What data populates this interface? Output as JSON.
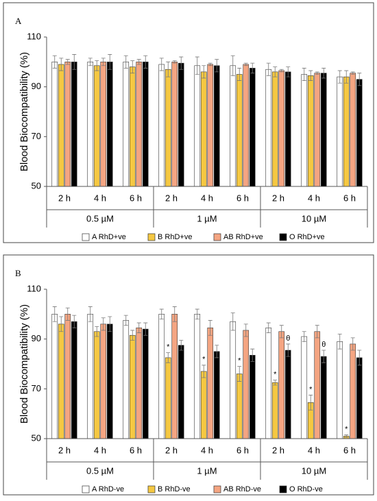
{
  "chart_data": [
    {
      "type": "bar",
      "panel_label": "A",
      "y_label": "Blood Biocompatibility (%)",
      "categories": [
        "2 h",
        "4 h",
        "6 h",
        "2 h",
        "4 h",
        "6 h",
        "2 h",
        "4 h",
        "6 h"
      ],
      "group_labels": [
        "0.5 µM",
        "1 µM",
        "10 µM"
      ],
      "ylim": [
        50,
        110
      ],
      "yticks": [
        50,
        70,
        90,
        110
      ],
      "legend": "bottom",
      "series": [
        {
          "name": "A RhD+ve",
          "color": "#ffffff",
          "values": [
            100,
            100,
            100,
            99,
            98.5,
            98.5,
            97,
            95,
            94
          ],
          "errors": [
            2.5,
            1.5,
            2.5,
            2.5,
            3.5,
            4,
            2.5,
            2.5,
            2.5
          ]
        },
        {
          "name": "B RhD+ve",
          "color": "#f5c842",
          "values": [
            99,
            98.5,
            98,
            97,
            96,
            95,
            96,
            94.5,
            94
          ],
          "errors": [
            2.5,
            2,
            2.5,
            3,
            2.5,
            2.5,
            2,
            2,
            2.5
          ]
        },
        {
          "name": "AB RhD+ve",
          "color": "#f4a582",
          "values": [
            100,
            100,
            100,
            100,
            99,
            99,
            96.5,
            95.5,
            95.5
          ],
          "errors": [
            1,
            1.5,
            1,
            0.5,
            0.5,
            0.5,
            0.5,
            0.5,
            0.5
          ]
        },
        {
          "name": "O RhD+ve",
          "color": "#000000",
          "values": [
            100,
            100,
            100,
            99.5,
            98.5,
            97.5,
            96,
            95.5,
            93
          ],
          "errors": [
            3,
            3,
            2.5,
            2.5,
            2.5,
            2,
            2,
            2,
            2.5
          ]
        }
      ]
    },
    {
      "type": "bar",
      "panel_label": "B",
      "y_label": "Blood Biocompatibility (%)",
      "categories": [
        "2 h",
        "4 h",
        "6 h",
        "2 h",
        "4 h",
        "6 h",
        "2 h",
        "4 h",
        "6 h"
      ],
      "group_labels": [
        "0.5 µM",
        "1 µM",
        "10 µM"
      ],
      "ylim": [
        50,
        110
      ],
      "yticks": [
        50,
        70,
        90,
        110
      ],
      "legend": "bottom",
      "series": [
        {
          "name": "A RhD-ve",
          "color": "#ffffff",
          "values": [
            100,
            100,
            97.5,
            100,
            100,
            97,
            94.5,
            91,
            89
          ],
          "errors": [
            3,
            3,
            2,
            2,
            2,
            3.5,
            2,
            2,
            3
          ]
        },
        {
          "name": "B RhD-ve",
          "color": "#f5c842",
          "values": [
            96,
            93,
            91.5,
            82.5,
            77,
            76,
            72.5,
            64.5,
            51
          ],
          "errors": [
            3,
            2,
            2,
            2,
            2.5,
            3,
            1,
            3,
            0.5
          ],
          "annotations": [
            null,
            null,
            null,
            "*",
            "*",
            "*",
            "*",
            "*",
            "*"
          ]
        },
        {
          "name": "AB RhD-ve",
          "color": "#f4a582",
          "values": [
            100,
            96,
            94.5,
            100,
            94.5,
            93.5,
            93,
            93,
            88
          ],
          "errors": [
            2.5,
            2.5,
            2,
            3,
            3,
            2.5,
            2.5,
            2.5,
            2.5
          ]
        },
        {
          "name": "O RhD-ve",
          "color": "#000000",
          "values": [
            97,
            96,
            94,
            87.5,
            85,
            83.5,
            85.5,
            83,
            82.5
          ],
          "errors": [
            2.5,
            3,
            2.5,
            2,
            2.5,
            2.5,
            2.5,
            2.5,
            3
          ],
          "annotations": [
            null,
            null,
            null,
            null,
            null,
            null,
            "θ",
            "θ",
            null
          ]
        }
      ]
    }
  ]
}
